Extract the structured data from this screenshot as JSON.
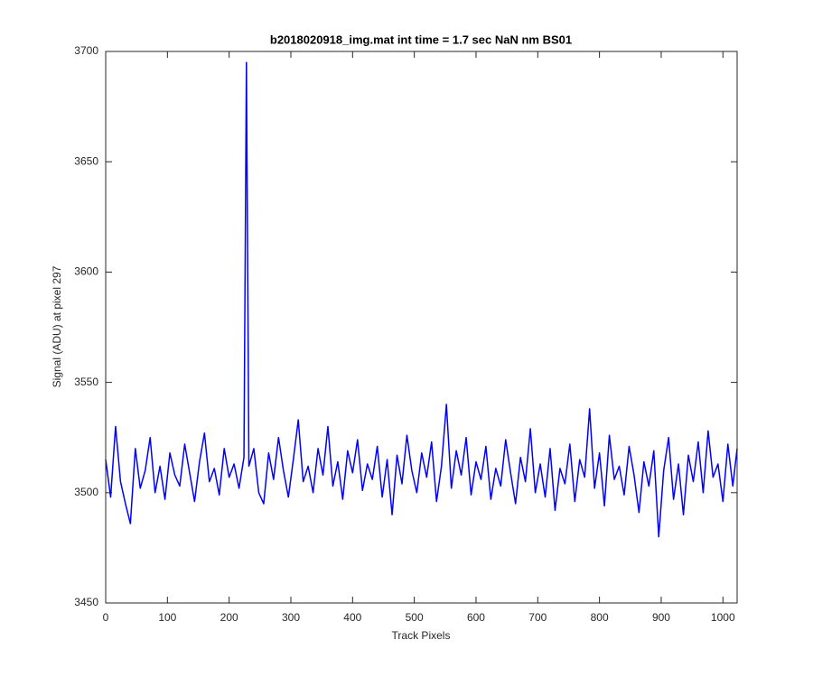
{
  "chart_data": {
    "type": "line",
    "title": "b2018020918_img.mat int time = 1.7 sec  NaN nm BS01",
    "xlabel": "Track Pixels",
    "ylabel": "Signal (ADU) at pixel 297",
    "xlim": [
      0,
      1023
    ],
    "ylim": [
      3450,
      3700
    ],
    "xticks": [
      0,
      100,
      200,
      300,
      400,
      500,
      600,
      700,
      800,
      900,
      1000
    ],
    "yticks": [
      3450,
      3500,
      3550,
      3600,
      3650,
      3700
    ],
    "series": [
      {
        "color": "#0000ff",
        "x": [
          0,
          8,
          16,
          24,
          32,
          40,
          48,
          56,
          64,
          72,
          80,
          88,
          96,
          104,
          112,
          120,
          128,
          136,
          144,
          152,
          160,
          168,
          176,
          184,
          192,
          200,
          208,
          216,
          224,
          228,
          232,
          240,
          248,
          256,
          264,
          272,
          280,
          288,
          296,
          304,
          312,
          320,
          328,
          336,
          344,
          352,
          360,
          368,
          376,
          384,
          392,
          400,
          408,
          416,
          424,
          432,
          440,
          448,
          456,
          464,
          472,
          480,
          488,
          496,
          504,
          512,
          520,
          528,
          536,
          544,
          552,
          560,
          568,
          576,
          584,
          592,
          600,
          608,
          616,
          624,
          632,
          640,
          648,
          656,
          664,
          672,
          680,
          688,
          696,
          704,
          712,
          720,
          728,
          736,
          744,
          752,
          760,
          768,
          776,
          784,
          792,
          800,
          808,
          816,
          824,
          832,
          840,
          848,
          856,
          864,
          872,
          880,
          888,
          896,
          904,
          912,
          920,
          928,
          936,
          944,
          952,
          960,
          968,
          976,
          984,
          992,
          1000,
          1008,
          1016,
          1023
        ],
        "values": [
          3515,
          3498,
          3530,
          3505,
          3495,
          3486,
          3520,
          3502,
          3510,
          3525,
          3500,
          3512,
          3497,
          3518,
          3508,
          3503,
          3522,
          3509,
          3496,
          3514,
          3527,
          3505,
          3511,
          3499,
          3520,
          3507,
          3513,
          3502,
          3516,
          3695,
          3512,
          3520,
          3500,
          3495,
          3518,
          3506,
          3525,
          3510,
          3498,
          3515,
          3533,
          3505,
          3512,
          3500,
          3520,
          3508,
          3530,
          3503,
          3514,
          3497,
          3519,
          3509,
          3524,
          3501,
          3513,
          3506,
          3521,
          3498,
          3515,
          3490,
          3517,
          3504,
          3526,
          3510,
          3500,
          3518,
          3507,
          3523,
          3496,
          3512,
          3540,
          3502,
          3519,
          3508,
          3525,
          3499,
          3514,
          3506,
          3521,
          3497,
          3511,
          3503,
          3524,
          3509,
          3495,
          3516,
          3505,
          3529,
          3500,
          3513,
          3498,
          3520,
          3492,
          3511,
          3504,
          3522,
          3496,
          3515,
          3507,
          3538,
          3502,
          3518,
          3494,
          3526,
          3506,
          3512,
          3499,
          3521,
          3508,
          3491,
          3514,
          3503,
          3519,
          3480,
          3510,
          3525,
          3497,
          3513,
          3490,
          3517,
          3505,
          3523,
          3500,
          3528,
          3507,
          3513,
          3496,
          3522,
          3503,
          3520
        ]
      }
    ]
  }
}
